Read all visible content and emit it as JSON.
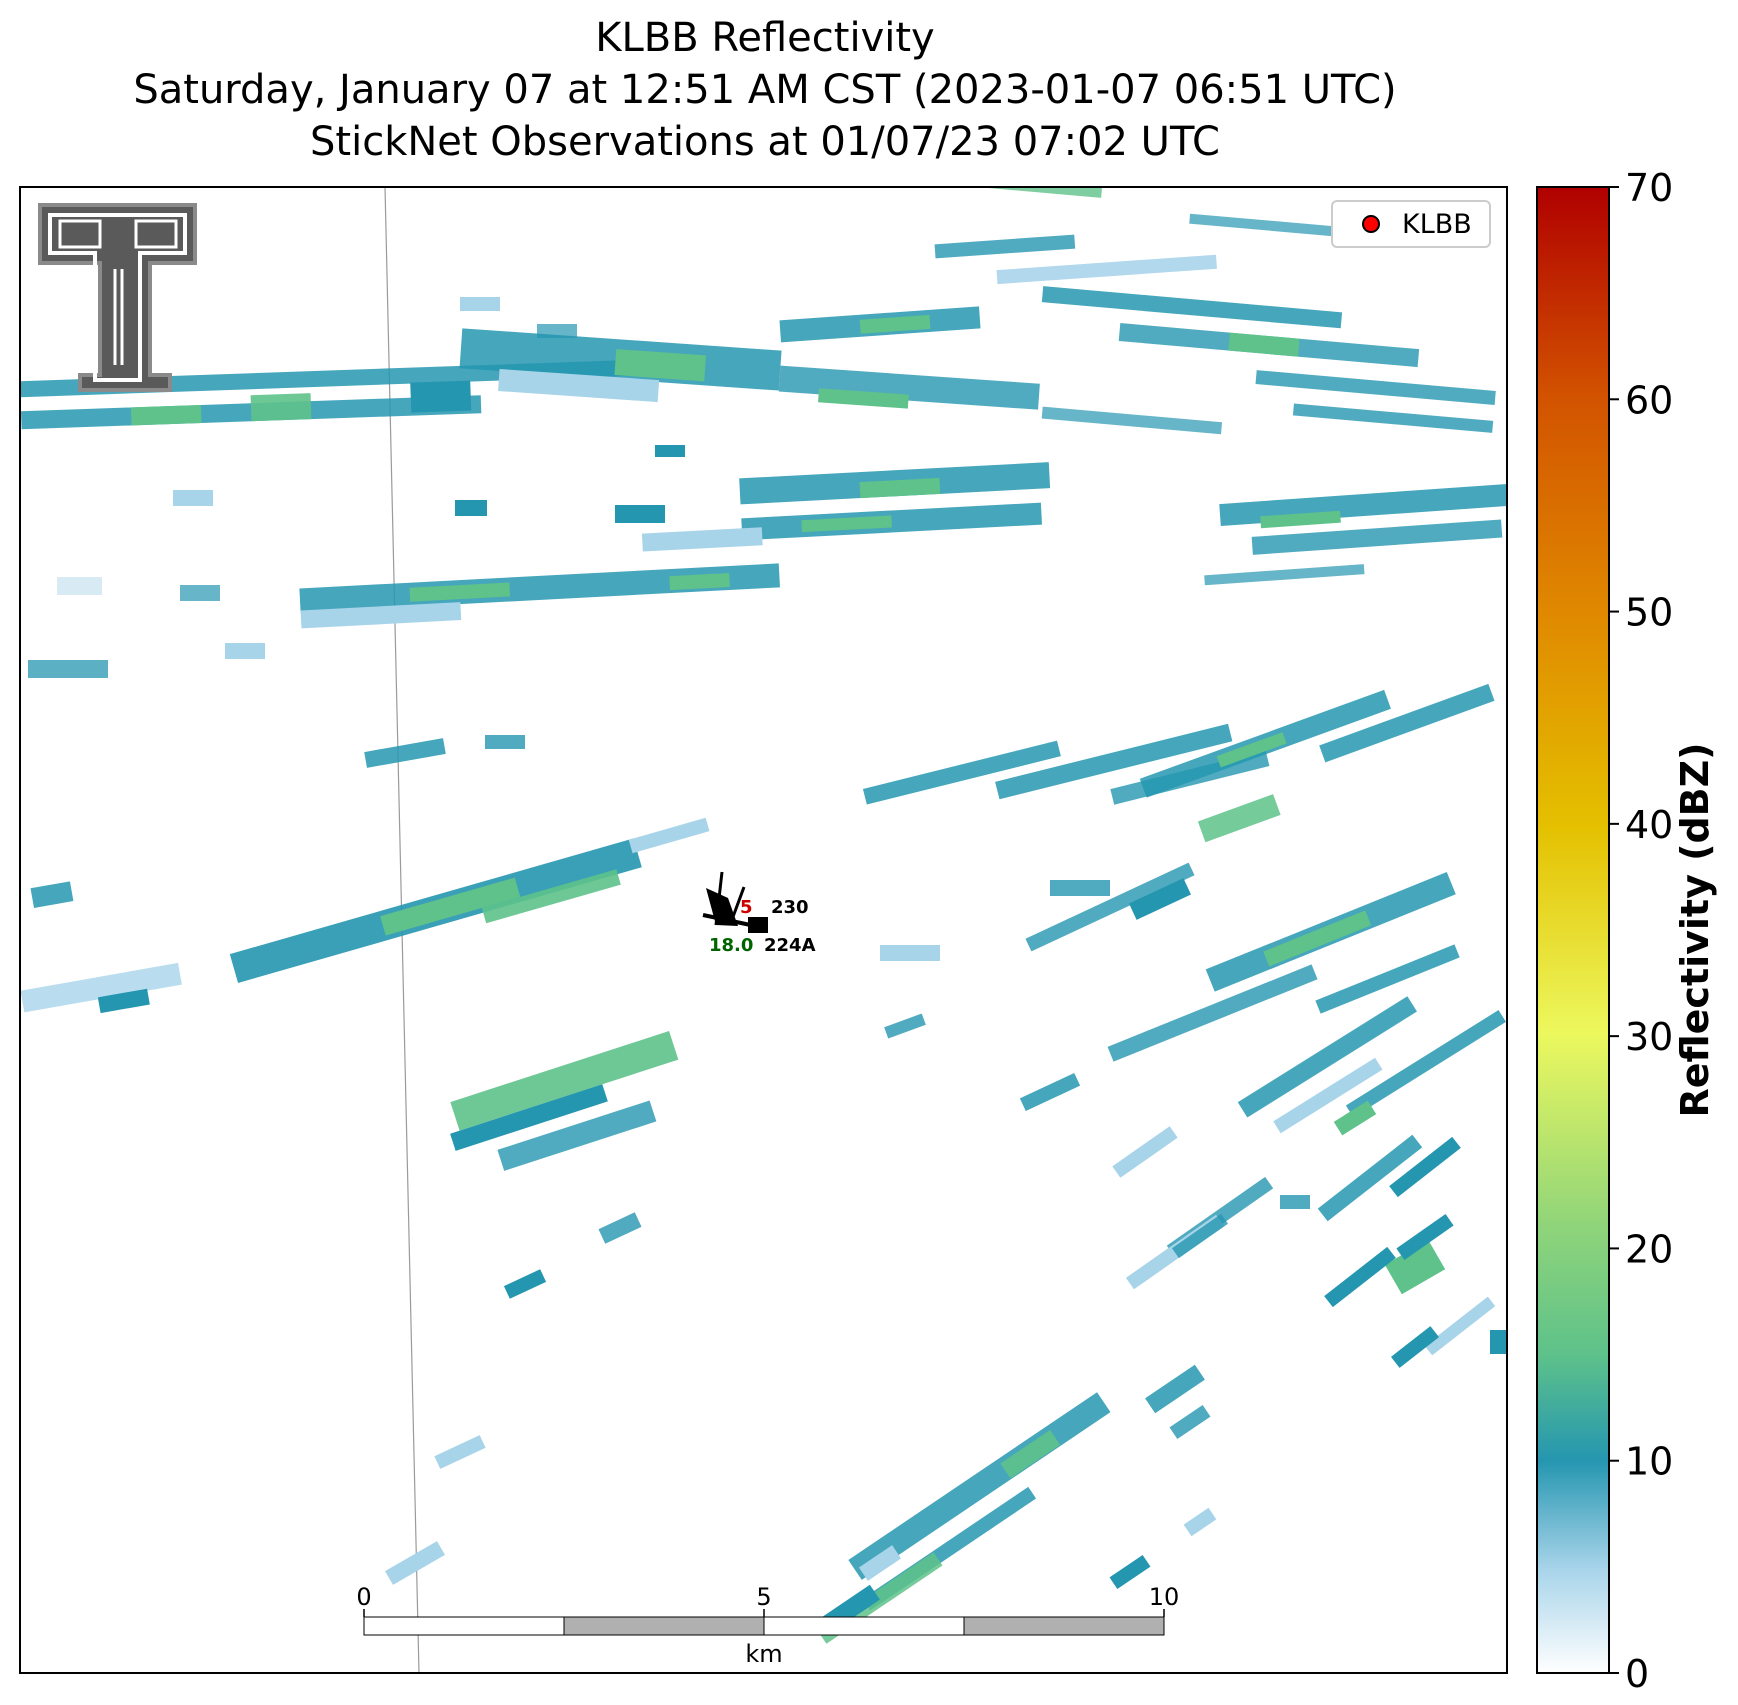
{
  "title": {
    "line1": "KLBB Reflectivity",
    "line2": "Saturday, January 07 at 12:51 AM CST (2023-01-07 06:51 UTC)",
    "line3": "StickNet Observations at 01/07/23 07:02 UTC"
  },
  "legend": {
    "label": "KLBB",
    "marker_color": "#ff0000"
  },
  "colorbar": {
    "label": "Reflectivity (dBZ)",
    "ticks": [
      "0",
      "10",
      "20",
      "30",
      "40",
      "50",
      "60",
      "70"
    ],
    "stops": [
      "#ffffff",
      "#a8d4ea",
      "#2596b0",
      "#5ec28a",
      "#8fd47a",
      "#ecf85e",
      "#e4c000",
      "#e08a00",
      "#d25200",
      "#b00000"
    ]
  },
  "scalebar": {
    "ticks": [
      "0",
      "5",
      "10"
    ],
    "unit": "km"
  },
  "stations": [
    {
      "id": "230",
      "value": "5",
      "value_color": "#cc0000"
    },
    {
      "id": "224A",
      "value": "18.0",
      "value_color": "#006400"
    }
  ]
}
